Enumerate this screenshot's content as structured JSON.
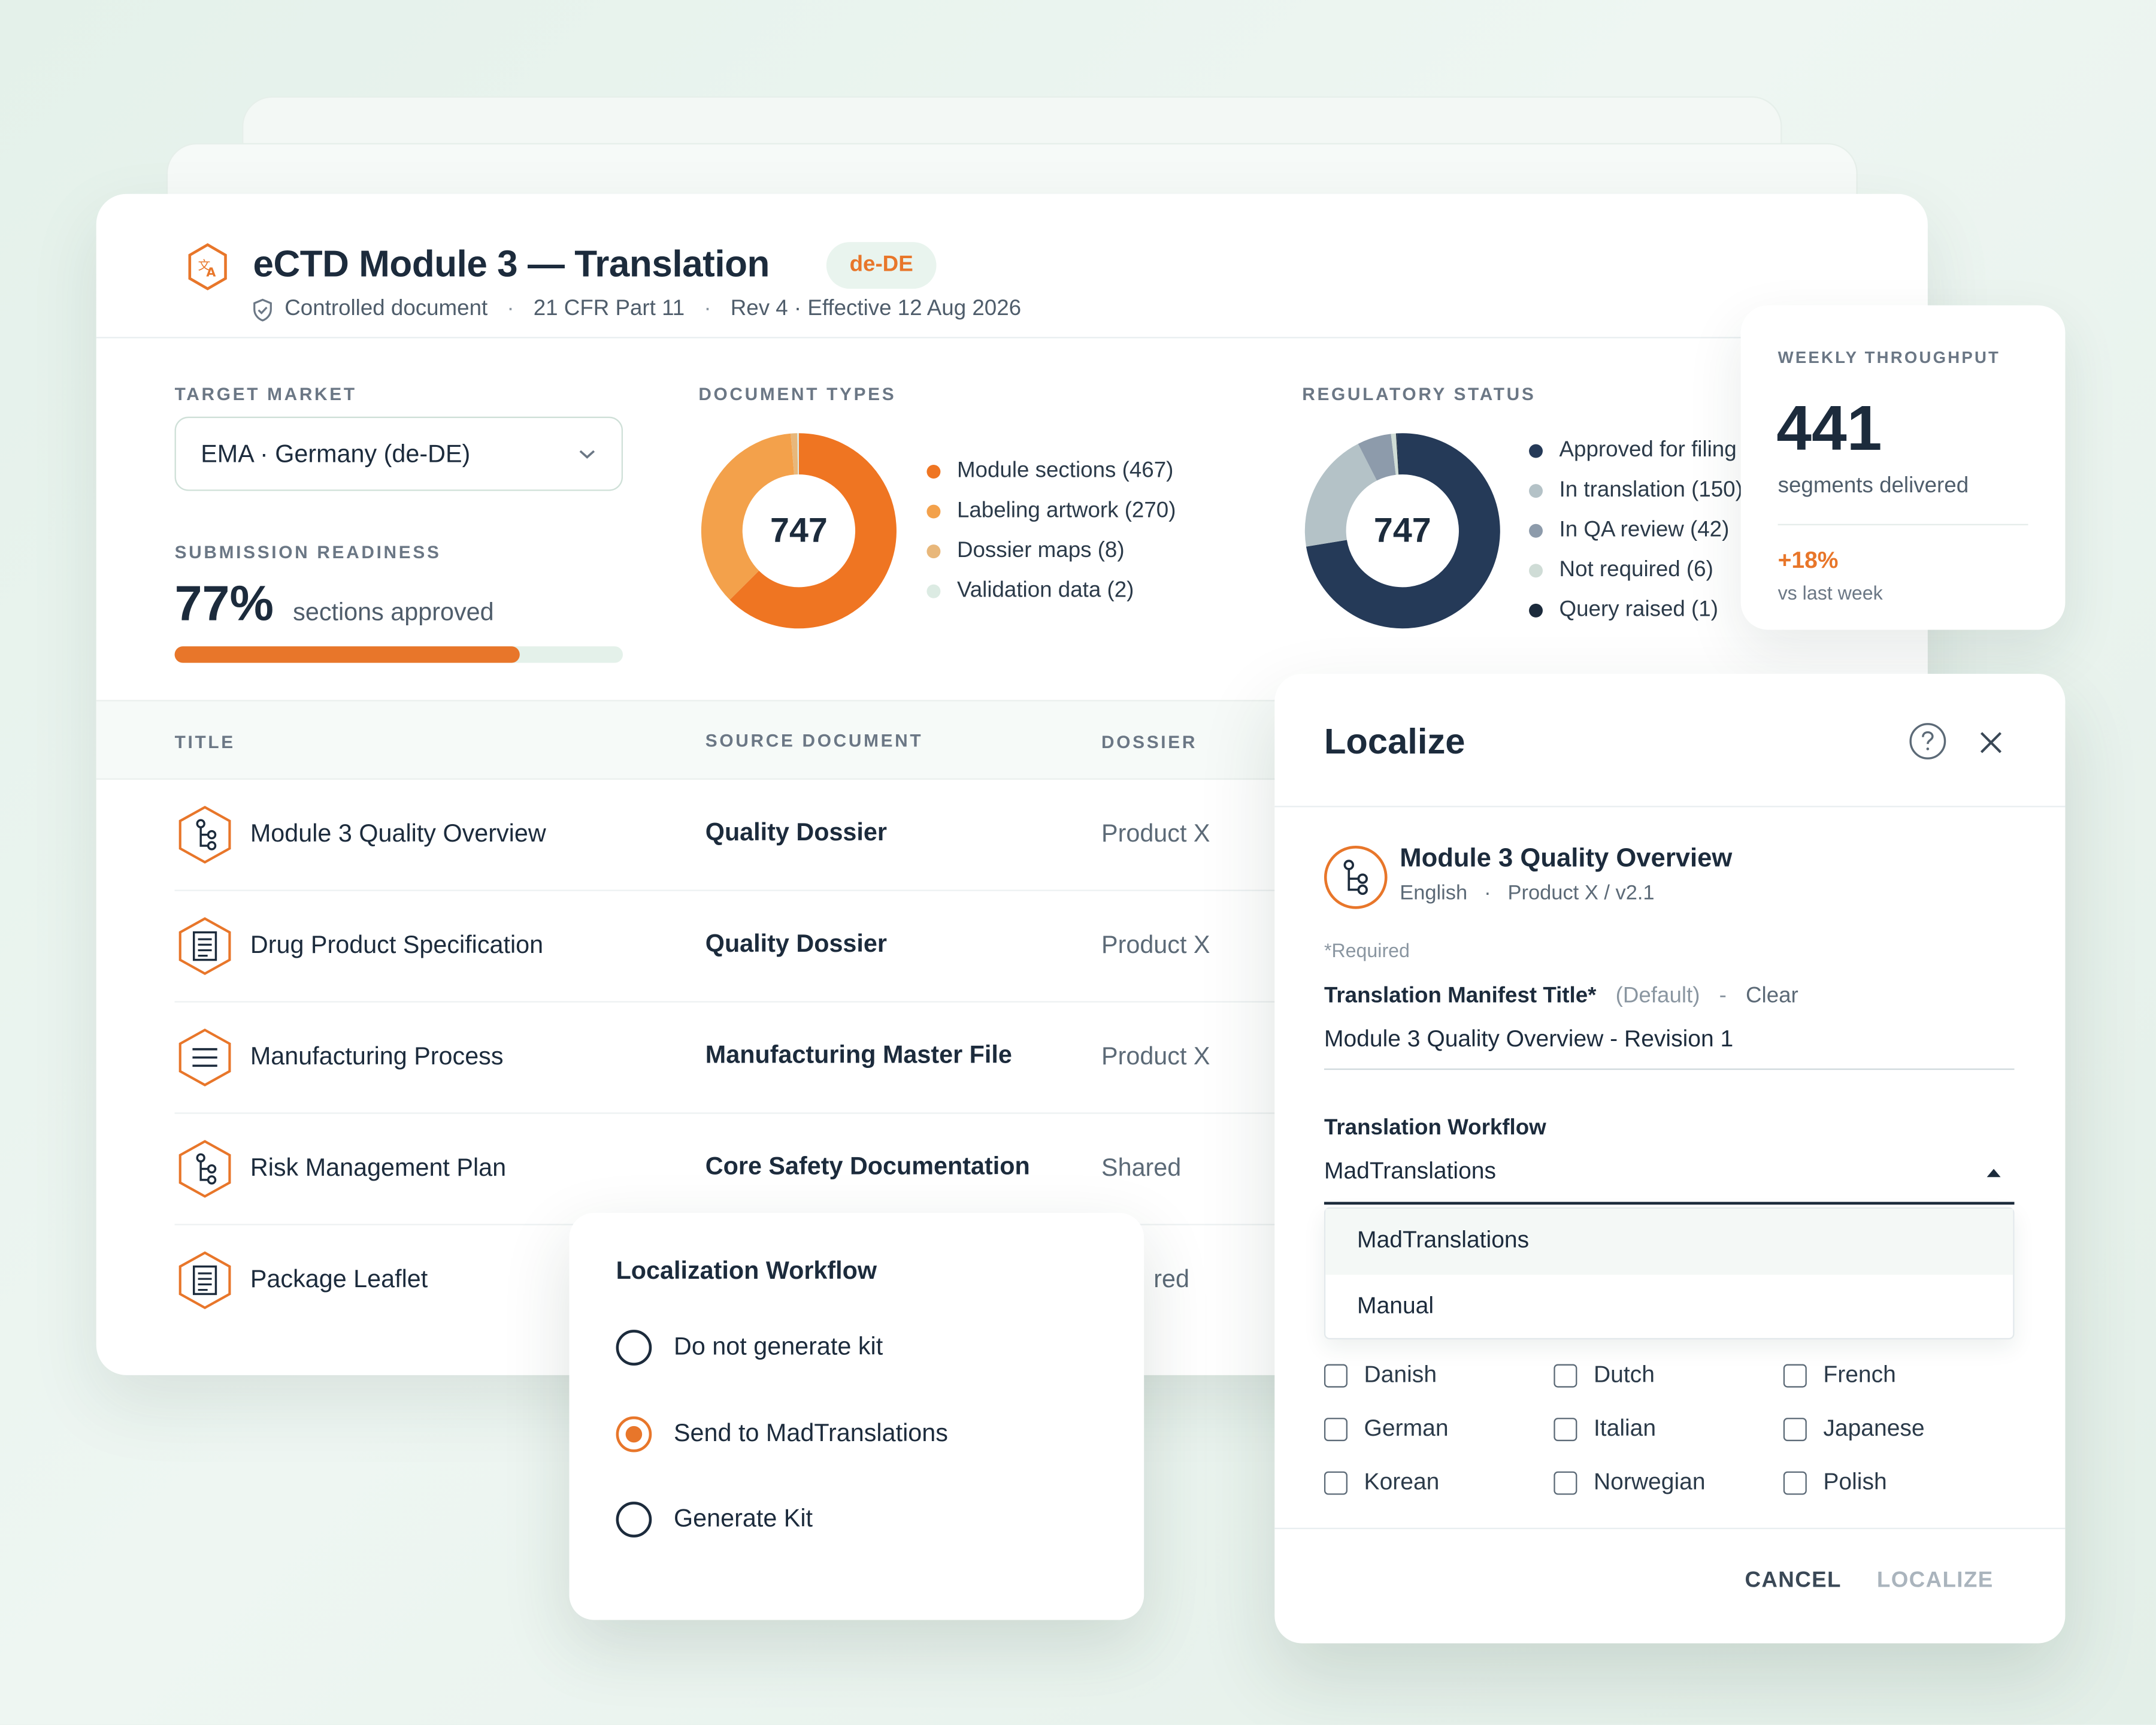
{
  "header": {
    "title": "eCTD Module 3 — Translation",
    "locale_pill": "de-DE",
    "meta": [
      "Controlled document",
      "21 CFR Part 11",
      "Rev 4 · Effective 12 Aug 2026"
    ]
  },
  "target_market": {
    "label": "TARGET MARKET",
    "selected": "EMA · Germany (de-DE)"
  },
  "readiness": {
    "label": "SUBMISSION READINESS",
    "value": "77%",
    "suffix": "sections approved",
    "progress": 0.77
  },
  "doc_types": {
    "label": "DOCUMENT TYPES",
    "total": "747",
    "items": [
      {
        "label": "Module sections (467)",
        "value": 467,
        "color": "#ef7522"
      },
      {
        "label": "Labeling artwork (270)",
        "value": 270,
        "color": "#f3a14b"
      },
      {
        "label": "Dossier maps (8)",
        "value": 8,
        "color": "#e8b77a"
      },
      {
        "label": "Validation data (2)",
        "value": 2,
        "color": "#dcebe3"
      }
    ]
  },
  "reg_status": {
    "label": "REGULATORY STATUS",
    "total": "747",
    "items": [
      {
        "label": "Approved for filing",
        "value": 548,
        "color": "#253a58"
      },
      {
        "label": "In translation (150)",
        "value": 150,
        "color": "#b4c2c7"
      },
      {
        "label": "In QA review (42)",
        "value": 42,
        "color": "#8d9bab"
      },
      {
        "label": "Not required (6)",
        "value": 6,
        "color": "#cfdcd6"
      },
      {
        "label": "Query raised (1)",
        "value": 1,
        "color": "#1c2b3c"
      }
    ]
  },
  "table": {
    "headers": [
      "TITLE",
      "SOURCE DOCUMENT",
      "DOSSIER"
    ],
    "rows": [
      {
        "title": "Module 3 Quality Overview",
        "source": "Quality Dossier",
        "dossier": "Product X",
        "icon": "hierarchy-icon"
      },
      {
        "title": "Drug Product Specification",
        "source": "Quality Dossier",
        "dossier": "Product X",
        "icon": "document-icon"
      },
      {
        "title": "Manufacturing Process",
        "source": "Manufacturing Master File",
        "dossier": "Product X",
        "icon": "list-icon"
      },
      {
        "title": "Risk Management Plan",
        "source": "Core Safety Documentation",
        "dossier": "Shared",
        "icon": "hierarchy-icon"
      },
      {
        "title": "Package Leaflet",
        "source": "",
        "dossier": "red",
        "icon": "document-icon"
      }
    ]
  },
  "throughput": {
    "label": "WEEKLY THROUGHPUT",
    "value": "441",
    "caption": "segments delivered",
    "delta": "+18%",
    "delta_caption": "vs last week"
  },
  "localize": {
    "title": "Localize",
    "doc_title": "Module 3 Quality Overview",
    "doc_lang": "English",
    "doc_path": "Product X / v2.1",
    "required_note": "*Required",
    "manifest_label": "Translation Manifest Title*",
    "manifest_default": "(Default)",
    "manifest_sep": "-",
    "manifest_clear": "Clear",
    "manifest_value": "Module 3 Quality Overview - Revision 1",
    "workflow_label": "Translation Workflow",
    "workflow_value": "MadTranslations",
    "workflow_options": [
      "MadTranslations",
      "Manual"
    ],
    "languages": [
      "Danish",
      "Dutch",
      "French",
      "German",
      "Italian",
      "Japanese",
      "Korean",
      "Norwegian",
      "Polish"
    ],
    "cancel": "CANCEL",
    "localize": "LOCALIZE"
  },
  "workflow_popup": {
    "title": "Localization Workflow",
    "options": [
      "Do not generate kit",
      "Send to MadTranslations",
      "Generate Kit"
    ],
    "selected_index": 1
  },
  "colors": {
    "accent": "#e8762a",
    "navy": "#1c2b3c"
  }
}
